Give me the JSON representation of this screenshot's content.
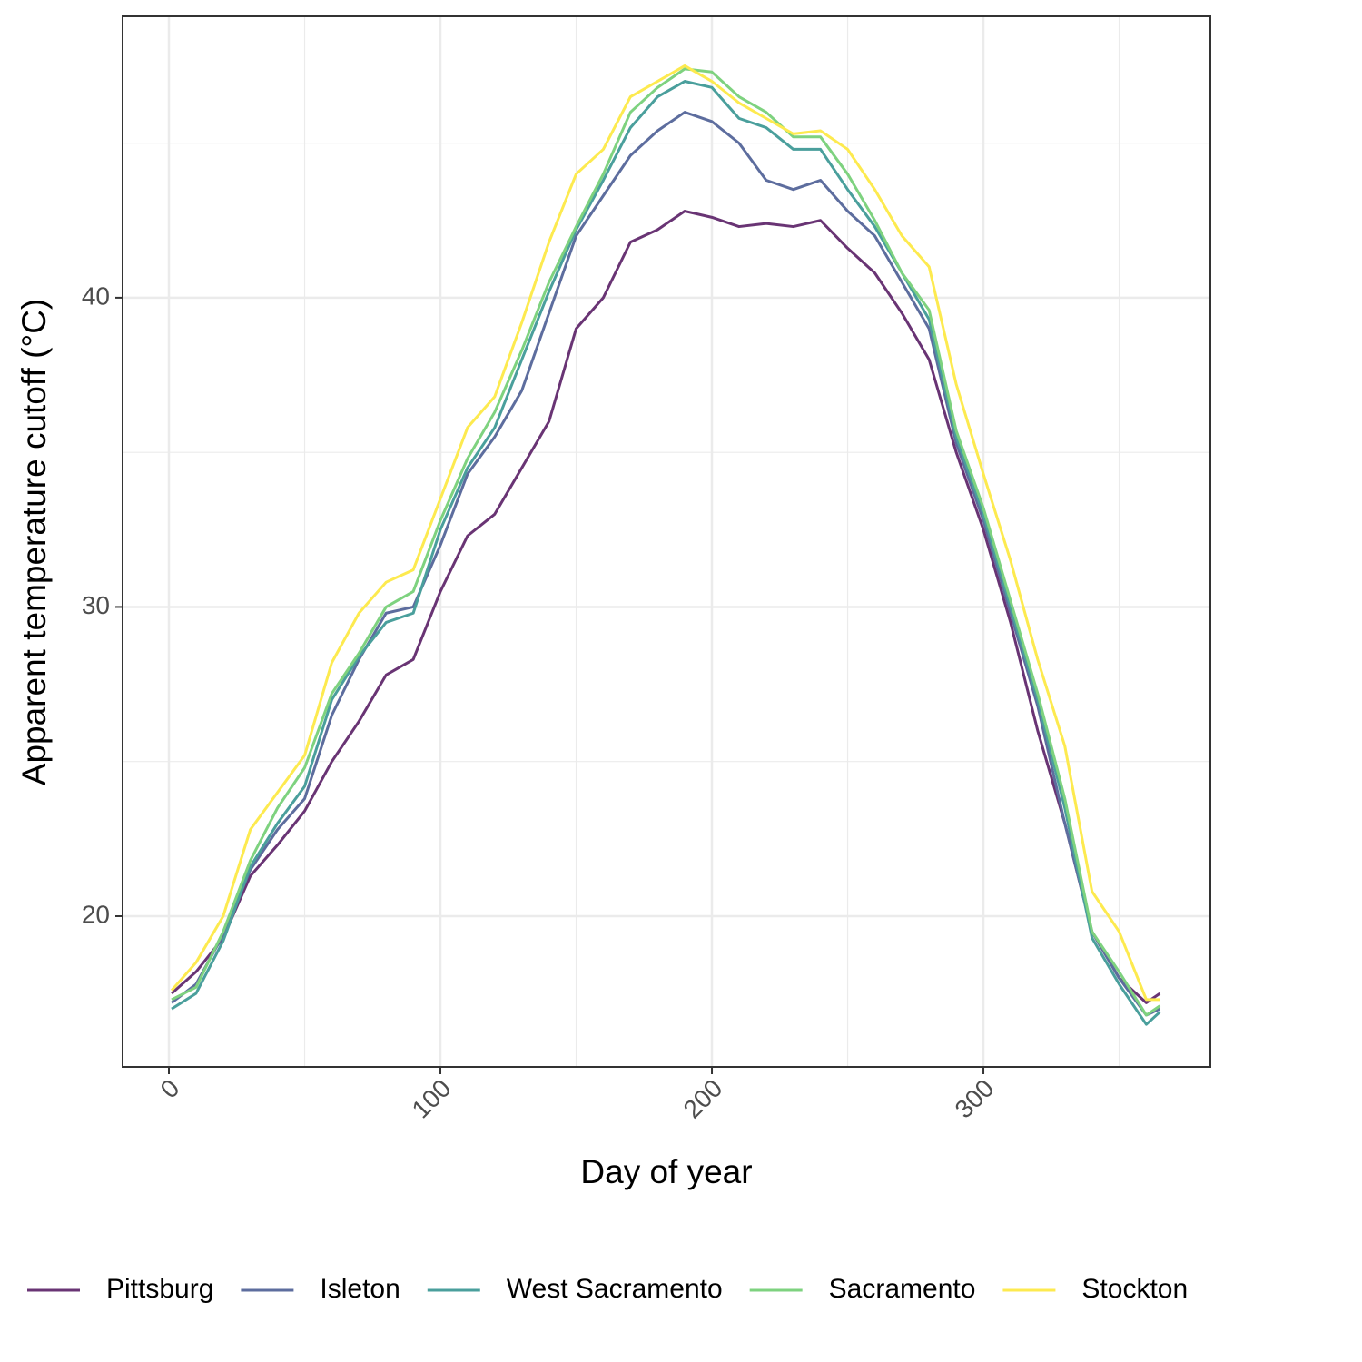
{
  "chart_data": {
    "type": "line",
    "x_label": "Day of year",
    "y_label": "Apparent temperature cutoff (°C)",
    "x": [
      1,
      10,
      20,
      30,
      40,
      50,
      60,
      70,
      80,
      90,
      100,
      110,
      120,
      130,
      140,
      150,
      160,
      170,
      180,
      190,
      200,
      210,
      220,
      230,
      240,
      250,
      260,
      270,
      280,
      290,
      300,
      310,
      320,
      330,
      340,
      350,
      360,
      365
    ],
    "series": [
      {
        "name": "Pittsburg",
        "color": "#693474",
        "values": [
          17.5,
          18.2,
          19.3,
          21.3,
          22.3,
          23.4,
          25.0,
          26.3,
          27.8,
          28.3,
          30.5,
          32.3,
          33.0,
          34.5,
          36.0,
          39.0,
          40.0,
          41.8,
          42.2,
          42.8,
          42.6,
          42.3,
          42.4,
          42.3,
          42.5,
          41.6,
          40.8,
          39.5,
          38.0,
          35.0,
          32.5,
          29.5,
          26.0,
          23.0,
          19.5,
          18.0,
          17.2,
          17.5
        ]
      },
      {
        "name": "Isleton",
        "color": "#5d6d9e",
        "values": [
          17.2,
          17.8,
          19.4,
          21.5,
          22.8,
          23.8,
          26.5,
          28.3,
          29.8,
          30.0,
          32.0,
          34.3,
          35.5,
          37.0,
          39.5,
          42.0,
          43.3,
          44.6,
          45.4,
          46.0,
          45.7,
          45.0,
          43.8,
          43.5,
          43.8,
          42.8,
          42.0,
          40.5,
          39.0,
          35.3,
          32.8,
          29.8,
          26.8,
          23.0,
          19.5,
          18.0,
          16.8,
          17.0
        ]
      },
      {
        "name": "West Sacramento",
        "color": "#4a9f9c",
        "values": [
          17.0,
          17.5,
          19.2,
          21.6,
          23.0,
          24.2,
          27.0,
          28.4,
          29.5,
          29.8,
          32.5,
          34.5,
          35.8,
          38.0,
          40.2,
          42.2,
          43.8,
          45.5,
          46.5,
          47.0,
          46.8,
          45.8,
          45.5,
          44.8,
          44.8,
          43.5,
          42.3,
          40.8,
          39.3,
          35.5,
          33.0,
          30.0,
          27.0,
          23.5,
          19.3,
          17.8,
          16.5,
          16.9
        ]
      },
      {
        "name": "Sacramento",
        "color": "#7ed27f",
        "values": [
          17.3,
          17.7,
          19.5,
          21.8,
          23.5,
          24.8,
          27.2,
          28.5,
          30.0,
          30.5,
          32.8,
          34.8,
          36.3,
          38.3,
          40.5,
          42.3,
          44.0,
          46.0,
          46.8,
          47.4,
          47.3,
          46.5,
          46.0,
          45.2,
          45.2,
          44.0,
          42.5,
          40.8,
          39.6,
          35.7,
          33.2,
          30.2,
          27.2,
          23.8,
          19.5,
          18.2,
          16.8,
          17.1
        ]
      },
      {
        "name": "Stockton",
        "color": "#fdea4f",
        "values": [
          17.6,
          18.5,
          20.0,
          22.8,
          24.0,
          25.2,
          28.2,
          29.8,
          30.8,
          31.2,
          33.5,
          35.8,
          36.8,
          39.2,
          41.8,
          44.0,
          44.8,
          46.5,
          47.0,
          47.5,
          47.0,
          46.3,
          45.8,
          45.3,
          45.4,
          44.8,
          43.5,
          42.0,
          41.0,
          37.2,
          34.3,
          31.5,
          28.3,
          25.5,
          20.8,
          19.5,
          17.3,
          17.3
        ]
      }
    ],
    "xlim": [
      -17.06,
      383.6
    ],
    "ylim": [
      15.125,
      49.1
    ],
    "xticks": [
      0,
      100,
      200,
      300
    ],
    "yticks": [
      20,
      30,
      40
    ],
    "x_minor_grid": [
      50,
      150,
      250,
      350
    ],
    "y_minor_grid": [
      25,
      35,
      45
    ],
    "grid": true,
    "legend": "bottom"
  }
}
